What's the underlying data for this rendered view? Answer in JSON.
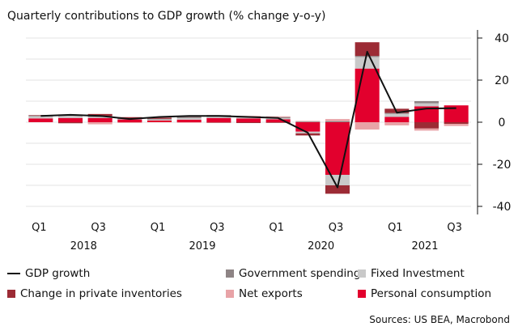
{
  "chart_data": {
    "type": "bar",
    "title": "Quarterly contributions to GDP growth (% change y-o-y)",
    "source": "Sources: US BEA, Macrobond",
    "ylim": [
      -45,
      45
    ],
    "yticks": [
      40,
      20,
      0,
      -20,
      -40
    ],
    "ytick_labels": [
      "40",
      "20",
      "0",
      "-20",
      "-40"
    ],
    "grid": true,
    "legend_position": "bottom",
    "x": [
      "2018Q1",
      "2018Q2",
      "2018Q3",
      "2018Q4",
      "2019Q1",
      "2019Q2",
      "2019Q3",
      "2019Q4",
      "2020Q1",
      "2020Q2",
      "2020Q3",
      "2020Q4",
      "2021Q1",
      "2021Q2",
      "2021Q3"
    ],
    "quarter_labels": [
      "Q1",
      "",
      "Q3",
      "",
      "Q1",
      "",
      "Q3",
      "",
      "Q1",
      "",
      "Q3",
      "",
      "Q1",
      "",
      "Q3"
    ],
    "year_labels": [
      {
        "label": "2018",
        "center_index": 1.5
      },
      {
        "label": "2019",
        "center_index": 5.5
      },
      {
        "label": "2020",
        "center_index": 9.5
      },
      {
        "label": "2021",
        "center_index": 13
      }
    ],
    "series": [
      {
        "name": "Personal consumption",
        "kind": "bar",
        "color": "#e2002d",
        "values": [
          1.8,
          2.0,
          2.0,
          1.3,
          0.8,
          1.2,
          2.0,
          1.8,
          1.4,
          -4.5,
          -25.0,
          25.5,
          2.5,
          7.5,
          8.0
        ]
      },
      {
        "name": "Fixed Investment",
        "kind": "bar",
        "color": "#c9c9c9",
        "values": [
          1.0,
          1.0,
          0.5,
          0.2,
          0.5,
          0.8,
          1.0,
          0.5,
          0.5,
          -0.8,
          -5.0,
          5.5,
          1.5,
          1.5,
          0.0
        ]
      },
      {
        "name": "Government spending",
        "kind": "bar",
        "color": "#8e8485",
        "values": [
          0.4,
          0.5,
          0.4,
          0.3,
          0.3,
          0.6,
          0.4,
          0.4,
          0.5,
          0.3,
          0.5,
          0.5,
          0.4,
          1.0,
          0.0
        ]
      },
      {
        "name": "Change in private inventories",
        "kind": "bar",
        "color": "#9c2b35",
        "values": [
          0.2,
          -0.5,
          1.0,
          0.6,
          0.5,
          0.3,
          -0.2,
          -0.4,
          -0.3,
          -1.0,
          -4.0,
          6.5,
          2.0,
          -3.0,
          -0.8
        ]
      },
      {
        "name": "Net exports",
        "kind": "bar",
        "color": "#e8a3a7",
        "values": [
          0.0,
          0.2,
          -1.0,
          -0.4,
          0.3,
          -0.3,
          -0.2,
          0.3,
          0.4,
          0.3,
          1.0,
          -3.5,
          -1.5,
          -1.0,
          -1.0
        ]
      },
      {
        "name": "GDP growth",
        "kind": "line",
        "color": "#111111",
        "values": [
          3.0,
          3.5,
          3.0,
          1.5,
          2.5,
          3.0,
          3.0,
          2.5,
          2.0,
          -5.0,
          -31.0,
          33.5,
          4.5,
          6.5,
          6.7
        ]
      }
    ],
    "legend_rows": [
      [
        "GDP growth",
        "Government spending",
        "Fixed Investment"
      ],
      [
        "Change in private inventories",
        "Net exports",
        "Personal consumption"
      ]
    ]
  }
}
